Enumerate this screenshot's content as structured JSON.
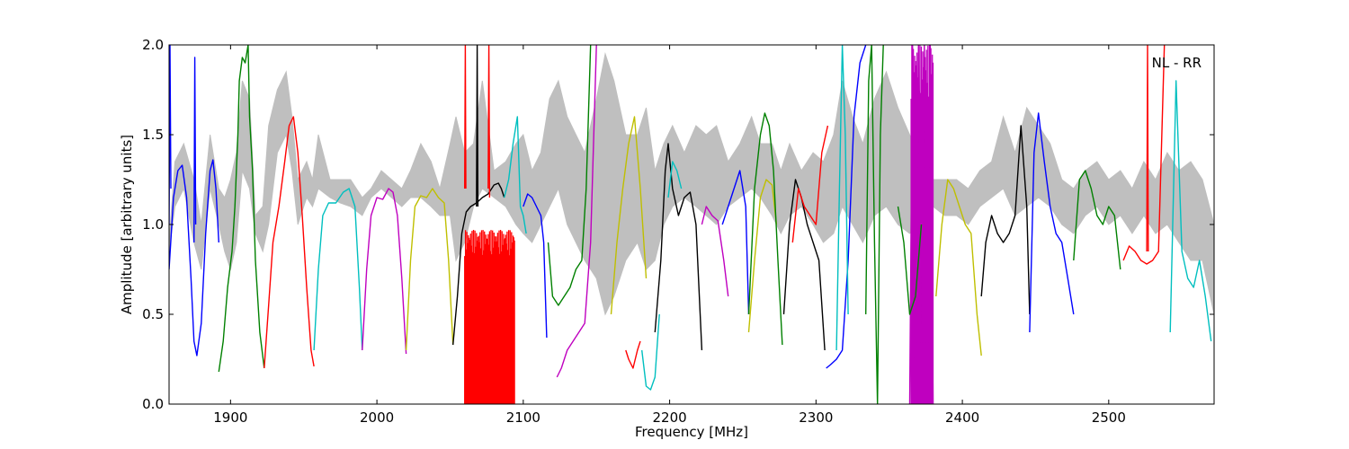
{
  "chart_data": {
    "type": "line",
    "title": "",
    "xlabel": "Frequency [MHz]",
    "ylabel": "Amplitude [arbitrary units]",
    "xlim": [
      1858,
      2572
    ],
    "ylim": [
      0.0,
      2.0
    ],
    "grid": false,
    "legend": "none",
    "annotation": "NL - RR",
    "x_ticks": [
      1900,
      2000,
      2100,
      2200,
      2300,
      2400,
      2500
    ],
    "x_tick_labels": [
      "1900",
      "2000",
      "2100",
      "2200",
      "2300",
      "2400",
      "2500"
    ],
    "y_ticks": [
      0.0,
      0.5,
      1.0,
      1.5,
      2.0
    ],
    "y_tick_labels": [
      "0.0",
      "0.5",
      "1.0",
      "1.5",
      "2.0"
    ],
    "colors": {
      "envelope": "#bfbfbf",
      "blue": "#0000ff",
      "green": "#008000",
      "red": "#ff0000",
      "cyan": "#00bfbf",
      "magenta": "#bf00bf",
      "yellow": "#bfbf00",
      "black": "#000000"
    },
    "envelope": {
      "x": [
        1858,
        1862,
        1868,
        1875,
        1880,
        1886,
        1892,
        1896,
        1900,
        1904,
        1908,
        1913,
        1917,
        1922,
        1926,
        1932,
        1938,
        1942,
        1946,
        1952,
        1956,
        1960,
        1968,
        1975,
        1982,
        1990,
        1996,
        2003,
        2010,
        2017,
        2023,
        2030,
        2037,
        2043,
        2050,
        2054,
        2060,
        2066,
        2072,
        2080,
        2088,
        2095,
        2100,
        2106,
        2112,
        2118,
        2124,
        2130,
        2136,
        2142,
        2150,
        2156,
        2162,
        2170,
        2178,
        2184,
        2190,
        2196,
        2202,
        2210,
        2218,
        2225,
        2232,
        2240,
        2248,
        2256,
        2262,
        2270,
        2276,
        2282,
        2290,
        2298,
        2305,
        2312,
        2318,
        2325,
        2332,
        2340,
        2348,
        2356,
        2364,
        2372,
        2380,
        2388,
        2396,
        2404,
        2412,
        2420,
        2428,
        2436,
        2444,
        2452,
        2460,
        2468,
        2476,
        2484,
        2492,
        2500,
        2508,
        2516,
        2524,
        2532,
        2540,
        2548,
        2556,
        2564,
        2572
      ],
      "upper": [
        0.9,
        1.35,
        1.45,
        1.25,
        1.0,
        1.5,
        1.2,
        1.15,
        1.25,
        1.4,
        1.8,
        1.7,
        1.05,
        1.1,
        1.55,
        1.75,
        1.85,
        1.6,
        1.25,
        1.35,
        1.25,
        1.5,
        1.25,
        1.25,
        1.25,
        1.15,
        1.2,
        1.3,
        1.25,
        1.2,
        1.3,
        1.45,
        1.35,
        1.2,
        1.45,
        1.6,
        1.4,
        1.45,
        1.8,
        1.3,
        1.35,
        1.45,
        1.5,
        1.3,
        1.4,
        1.7,
        1.8,
        1.6,
        1.5,
        1.4,
        1.7,
        1.95,
        1.8,
        1.5,
        1.5,
        1.65,
        1.3,
        1.45,
        1.55,
        1.4,
        1.55,
        1.5,
        1.55,
        1.35,
        1.45,
        1.6,
        1.45,
        1.45,
        1.3,
        1.45,
        1.3,
        1.4,
        1.35,
        1.5,
        1.8,
        1.6,
        1.45,
        1.7,
        1.85,
        1.65,
        1.5,
        1.3,
        1.25,
        1.25,
        1.25,
        1.2,
        1.3,
        1.35,
        1.6,
        1.4,
        1.65,
        1.55,
        1.45,
        1.25,
        1.2,
        1.3,
        1.35,
        1.25,
        1.3,
        1.2,
        1.35,
        1.25,
        1.4,
        1.3,
        1.35,
        1.25,
        1.0
      ],
      "lower": [
        0.85,
        1.1,
        1.2,
        0.9,
        0.75,
        1.2,
        1.0,
        0.85,
        0.75,
        0.9,
        1.3,
        1.2,
        0.95,
        0.85,
        1.0,
        1.4,
        1.5,
        1.3,
        1.0,
        1.15,
        1.1,
        1.2,
        1.15,
        1.12,
        1.1,
        1.05,
        1.15,
        1.2,
        1.15,
        1.1,
        1.15,
        1.15,
        1.1,
        1.05,
        1.05,
        0.8,
        0.9,
        1.1,
        1.2,
        1.15,
        1.1,
        1.0,
        0.95,
        0.9,
        1.0,
        1.1,
        1.2,
        1.0,
        0.9,
        0.8,
        0.7,
        0.5,
        0.6,
        0.8,
        0.9,
        0.75,
        0.8,
        1.0,
        1.1,
        1.15,
        1.1,
        1.05,
        1.0,
        1.1,
        1.15,
        1.2,
        1.15,
        1.05,
        0.95,
        1.05,
        1.1,
        1.0,
        0.9,
        0.95,
        1.1,
        1.0,
        0.9,
        1.05,
        1.1,
        1.0,
        0.95,
        1.0,
        1.1,
        1.05,
        1.05,
        1.0,
        1.1,
        1.15,
        1.2,
        1.05,
        1.1,
        1.15,
        1.1,
        1.0,
        0.95,
        1.05,
        1.1,
        1.0,
        1.05,
        0.95,
        1.05,
        0.95,
        1.0,
        0.9,
        0.8,
        0.8,
        0.5
      ]
    },
    "series": [
      {
        "color": "blue",
        "x": [
          1858,
          1861,
          1864,
          1867,
          1870,
          1873,
          1875,
          1877,
          1880,
          1883,
          1886,
          1888,
          1890,
          1892
        ],
        "y": [
          0.75,
          1.15,
          1.3,
          1.33,
          1.15,
          0.7,
          0.35,
          0.27,
          0.45,
          0.95,
          1.3,
          1.36,
          1.2,
          0.9
        ]
      },
      {
        "color": "blue",
        "x": [
          1858,
          1858.6,
          1859.2
        ],
        "y": [
          1.0,
          2.0,
          1.2
        ]
      },
      {
        "color": "blue",
        "x": [
          1875,
          1875.6,
          1876.2
        ],
        "y": [
          0.9,
          1.93,
          1.0
        ]
      },
      {
        "color": "green",
        "x": [
          1892,
          1895,
          1898,
          1901,
          1903,
          1905,
          1906,
          1908,
          1910,
          1912,
          1913,
          1915,
          1917,
          1920,
          1923
        ],
        "y": [
          0.18,
          0.35,
          0.65,
          0.85,
          1.1,
          1.5,
          1.8,
          1.93,
          1.9,
          2.0,
          1.6,
          1.3,
          0.8,
          0.4,
          0.2
        ]
      },
      {
        "color": "red",
        "x": [
          1923,
          1926,
          1929,
          1933,
          1937,
          1940,
          1943,
          1946,
          1949,
          1952,
          1955,
          1957
        ],
        "y": [
          0.2,
          0.55,
          0.9,
          1.1,
          1.35,
          1.55,
          1.6,
          1.4,
          1.05,
          0.65,
          0.3,
          0.21
        ]
      },
      {
        "color": "cyan",
        "x": [
          1957,
          1960,
          1963,
          1967,
          1972,
          1977,
          1981,
          1985,
          1988,
          1990
        ],
        "y": [
          0.3,
          0.75,
          1.05,
          1.12,
          1.12,
          1.18,
          1.2,
          1.1,
          0.65,
          0.3
        ]
      },
      {
        "color": "magenta",
        "x": [
          1990,
          1993,
          1996,
          2000,
          2004,
          2008,
          2011,
          2014,
          2017,
          2020
        ],
        "y": [
          0.3,
          0.75,
          1.05,
          1.15,
          1.14,
          1.2,
          1.18,
          1.05,
          0.7,
          0.28
        ]
      },
      {
        "color": "yellow",
        "x": [
          2020,
          2023,
          2026,
          2030,
          2034,
          2038,
          2042,
          2046,
          2049,
          2052
        ],
        "y": [
          0.3,
          0.8,
          1.1,
          1.16,
          1.15,
          1.2,
          1.15,
          1.12,
          0.8,
          0.33
        ]
      },
      {
        "color": "black",
        "x": [
          2052,
          2055,
          2058,
          2061,
          2064,
          2068,
          2072,
          2076,
          2080,
          2083,
          2085,
          2087
        ],
        "y": [
          0.33,
          0.6,
          0.95,
          1.07,
          1.1,
          1.12,
          1.15,
          1.17,
          1.22,
          1.23,
          1.2,
          1.15
        ]
      },
      {
        "color": "black",
        "x": [
          2068,
          2068.5,
          2069
        ],
        "y": [
          1.1,
          2.0,
          1.1
        ]
      },
      {
        "color": "red",
        "x": [
          2060,
          2060.4,
          2060.8
        ],
        "y": [
          1.2,
          2.0,
          1.2
        ]
      },
      {
        "color": "red",
        "x": [
          2076,
          2076.5,
          2077
        ],
        "y": [
          1.2,
          2.0,
          1.15
        ]
      },
      {
        "color": "cyan",
        "x": [
          2087,
          2090,
          2093,
          2096,
          2098,
          2100,
          2102
        ],
        "y": [
          1.15,
          1.25,
          1.45,
          1.6,
          1.1,
          1.05,
          0.95
        ]
      },
      {
        "color": "blue",
        "x": [
          2100,
          2103,
          2106,
          2109,
          2112,
          2114,
          2116
        ],
        "y": [
          1.1,
          1.17,
          1.15,
          1.1,
          1.05,
          0.9,
          0.37
        ]
      },
      {
        "color": "green",
        "x": [
          2117,
          2120,
          2124,
          2128,
          2132,
          2136,
          2140,
          2143,
          2146
        ],
        "y": [
          0.9,
          0.6,
          0.55,
          0.6,
          0.65,
          0.75,
          0.8,
          1.2,
          2.0
        ]
      },
      {
        "color": "magenta",
        "x": [
          2123,
          2126,
          2130,
          2134,
          2138,
          2142,
          2146,
          2150
        ],
        "y": [
          0.15,
          0.2,
          0.3,
          0.35,
          0.4,
          0.45,
          0.9,
          2.0
        ]
      },
      {
        "color": "yellow",
        "x": [
          2160,
          2164,
          2168,
          2172,
          2176,
          2180,
          2184
        ],
        "y": [
          0.5,
          0.9,
          1.2,
          1.45,
          1.6,
          1.2,
          0.7
        ]
      },
      {
        "color": "red",
        "x": [
          2170,
          2172,
          2175,
          2178,
          2180
        ],
        "y": [
          0.3,
          0.25,
          0.2,
          0.3,
          0.35
        ]
      },
      {
        "color": "cyan",
        "x": [
          2181,
          2184,
          2187,
          2190,
          2193
        ],
        "y": [
          0.3,
          0.1,
          0.08,
          0.15,
          0.5
        ]
      },
      {
        "color": "black",
        "x": [
          2190,
          2194,
          2197,
          2199,
          2202,
          2206,
          2210,
          2214,
          2218,
          2222
        ],
        "y": [
          0.4,
          0.8,
          1.3,
          1.45,
          1.2,
          1.05,
          1.15,
          1.18,
          1.0,
          0.3
        ]
      },
      {
        "color": "cyan",
        "x": [
          2199,
          2202,
          2205,
          2208
        ],
        "y": [
          1.15,
          1.35,
          1.3,
          1.2
        ]
      },
      {
        "color": "magenta",
        "x": [
          2222,
          2225,
          2229,
          2233,
          2237,
          2240
        ],
        "y": [
          1.0,
          1.1,
          1.05,
          1.02,
          0.8,
          0.6
        ]
      },
      {
        "color": "blue",
        "x": [
          2236,
          2240,
          2244,
          2248,
          2252,
          2254
        ],
        "y": [
          1.0,
          1.1,
          1.2,
          1.3,
          1.1,
          0.5
        ]
      },
      {
        "color": "yellow",
        "x": [
          2254,
          2258,
          2262,
          2266,
          2270,
          2273
        ],
        "y": [
          0.4,
          0.8,
          1.15,
          1.25,
          1.22,
          1.0
        ]
      },
      {
        "color": "green",
        "x": [
          2254,
          2258,
          2262,
          2265,
          2268,
          2271,
          2274,
          2277
        ],
        "y": [
          0.5,
          1.2,
          1.5,
          1.62,
          1.55,
          1.3,
          0.8,
          0.33
        ]
      },
      {
        "color": "black",
        "x": [
          2278,
          2282,
          2286,
          2290,
          2294,
          2298,
          2302,
          2306
        ],
        "y": [
          0.5,
          1.0,
          1.25,
          1.15,
          1.0,
          0.9,
          0.8,
          0.3
        ]
      },
      {
        "color": "red",
        "x": [
          2284,
          2288,
          2292,
          2296,
          2300,
          2304,
          2308
        ],
        "y": [
          0.9,
          1.2,
          1.1,
          1.05,
          1.0,
          1.4,
          1.55
        ]
      },
      {
        "color": "blue",
        "x": [
          2307,
          2310,
          2314,
          2318,
          2322,
          2326,
          2330,
          2334
        ],
        "y": [
          0.2,
          0.22,
          0.25,
          0.3,
          0.8,
          1.6,
          1.9,
          2.0
        ]
      },
      {
        "color": "cyan",
        "x": [
          2314,
          2316,
          2318,
          2320,
          2322
        ],
        "y": [
          0.3,
          1.2,
          2.0,
          1.5,
          0.5
        ]
      },
      {
        "color": "green",
        "x": [
          2334,
          2336,
          2338,
          2340,
          2342,
          2344,
          2346
        ],
        "y": [
          0.5,
          1.8,
          2.0,
          0.9,
          0.0,
          1.5,
          2.0
        ]
      },
      {
        "color": "magenta",
        "x": [
          2364,
          2366,
          2368,
          2370,
          2372,
          2374,
          2376,
          2378,
          2380
        ],
        "y": [
          0.0,
          2.0,
          0.0,
          2.0,
          0.0,
          2.0,
          0.0,
          2.0,
          0.0
        ]
      },
      {
        "color": "green",
        "x": [
          2356,
          2360,
          2364,
          2368,
          2372
        ],
        "y": [
          1.1,
          0.9,
          0.5,
          0.6,
          1.0
        ]
      },
      {
        "color": "yellow",
        "x": [
          2382,
          2386,
          2390,
          2394,
          2398,
          2402,
          2406,
          2410,
          2413
        ],
        "y": [
          0.6,
          1.0,
          1.25,
          1.2,
          1.1,
          1.0,
          0.95,
          0.5,
          0.27
        ]
      },
      {
        "color": "black",
        "x": [
          2413,
          2416,
          2420,
          2424,
          2428,
          2432,
          2436,
          2440,
          2444,
          2446
        ],
        "y": [
          0.6,
          0.9,
          1.05,
          0.95,
          0.9,
          0.95,
          1.05,
          1.55,
          1.1,
          0.5
        ]
      },
      {
        "color": "blue",
        "x": [
          2446,
          2449,
          2452,
          2456,
          2460,
          2464,
          2468,
          2472,
          2476
        ],
        "y": [
          0.4,
          1.4,
          1.62,
          1.35,
          1.1,
          0.95,
          0.9,
          0.7,
          0.5
        ]
      },
      {
        "color": "green",
        "x": [
          2476,
          2480,
          2484,
          2488,
          2492,
          2496,
          2500,
          2504,
          2508
        ],
        "y": [
          0.8,
          1.25,
          1.3,
          1.2,
          1.05,
          1.0,
          1.1,
          1.05,
          0.75
        ]
      },
      {
        "color": "red",
        "x": [
          2510,
          2514,
          2518,
          2522,
          2526,
          2530,
          2534,
          2538
        ],
        "y": [
          0.8,
          0.88,
          0.85,
          0.8,
          0.78,
          0.8,
          0.85,
          2.0
        ]
      },
      {
        "color": "red",
        "x": [
          2526,
          2526.5,
          2527
        ],
        "y": [
          0.85,
          2.0,
          0.85
        ]
      },
      {
        "color": "cyan",
        "x": [
          2542,
          2546,
          2550,
          2554,
          2558,
          2562,
          2566,
          2570
        ],
        "y": [
          0.4,
          1.8,
          0.85,
          0.7,
          0.65,
          0.8,
          0.6,
          0.35
        ]
      }
    ],
    "dense_bands": [
      {
        "color": "red",
        "x_start": 2060,
        "x_end": 2094,
        "y_min": 0.0,
        "y_max": 0.97
      },
      {
        "color": "magenta",
        "x_start": 2365,
        "x_end": 2380,
        "y_min": 0.0,
        "y_max": 2.0
      }
    ]
  }
}
